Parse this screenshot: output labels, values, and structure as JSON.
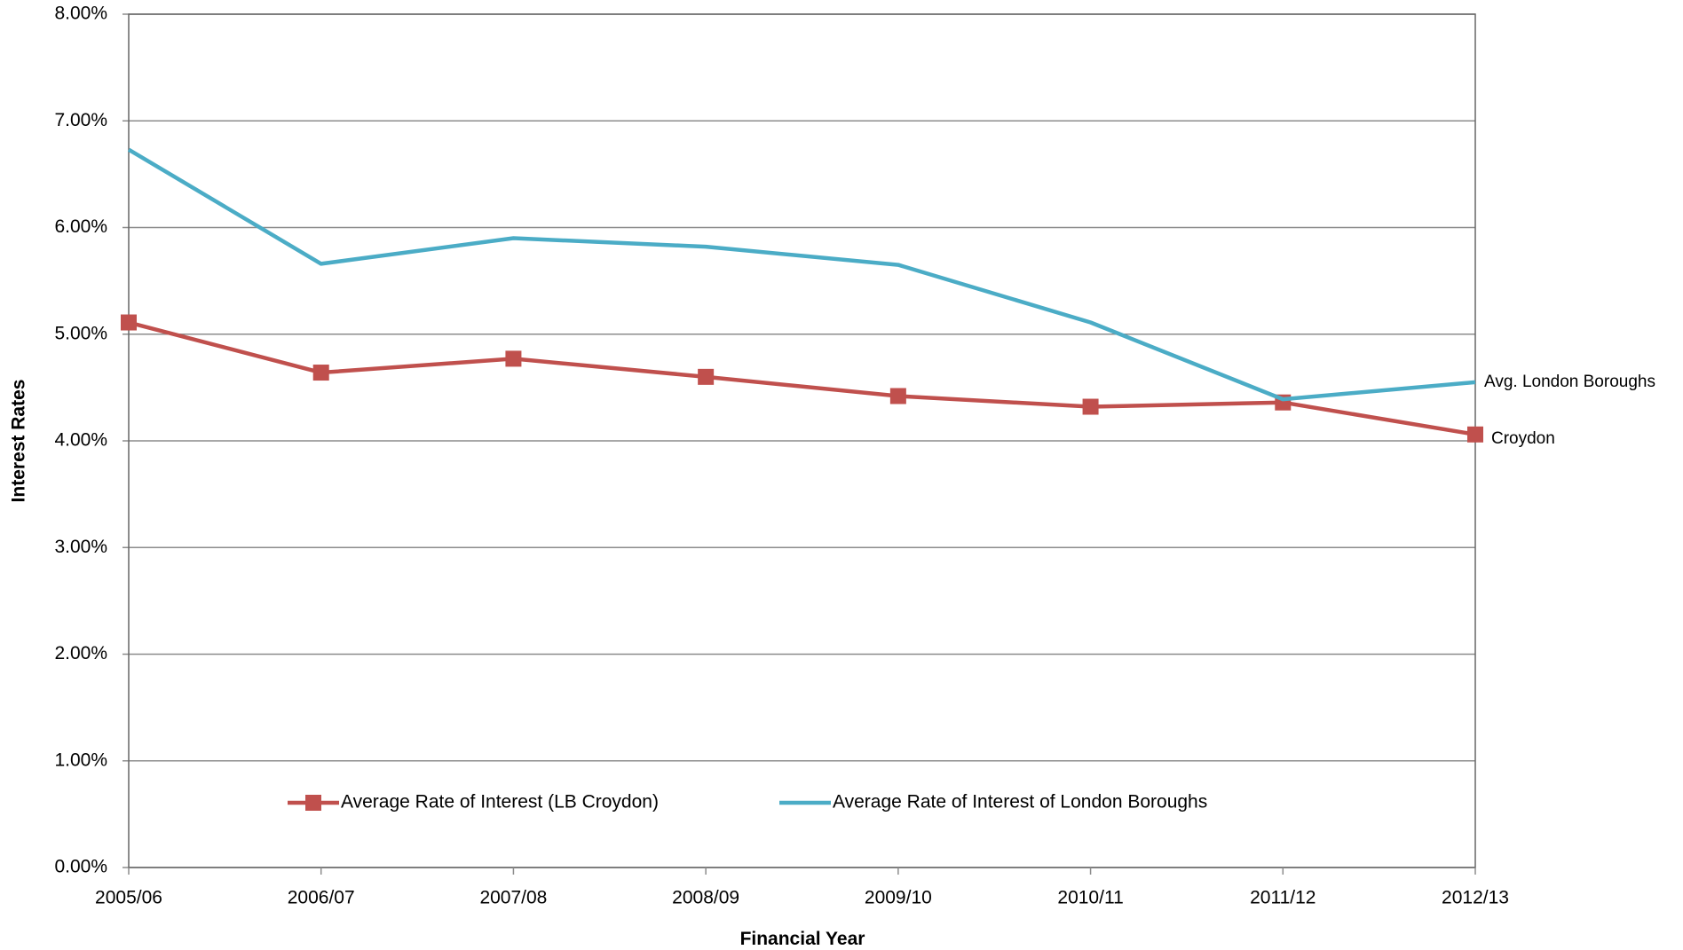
{
  "chart_data": {
    "type": "line",
    "x_label": "Financial Year",
    "y_label": "Interest Rates",
    "categories": [
      "2005/06",
      "2006/07",
      "2007/08",
      "2008/09",
      "2009/10",
      "2010/11",
      "2011/12",
      "2012/13"
    ],
    "series": [
      {
        "name": "Average Rate of Interest (LB Croydon)",
        "color": "#c0504d",
        "marker": "square",
        "end_label": "Croydon",
        "values": [
          5.11,
          4.64,
          4.77,
          4.6,
          4.42,
          4.32,
          4.36,
          4.06
        ]
      },
      {
        "name": "Average Rate of Interest of London Boroughs",
        "color": "#4bacc6",
        "marker": "none",
        "end_label": "Avg. London Boroughs",
        "values": [
          6.73,
          5.66,
          5.9,
          5.82,
          5.65,
          5.11,
          4.39,
          4.55
        ]
      }
    ],
    "ylim": [
      0,
      8
    ],
    "yticks": [
      {
        "value": 0,
        "label": "0.00%"
      },
      {
        "value": 1,
        "label": "1.00%"
      },
      {
        "value": 2,
        "label": "2.00%"
      },
      {
        "value": 3,
        "label": "3.00%"
      },
      {
        "value": 4,
        "label": "4.00%"
      },
      {
        "value": 5,
        "label": "5.00%"
      },
      {
        "value": 6,
        "label": "6.00%"
      },
      {
        "value": 7,
        "label": "7.00%"
      },
      {
        "value": 8,
        "label": "8.00%"
      }
    ],
    "grid": true,
    "legend": "bottom"
  }
}
